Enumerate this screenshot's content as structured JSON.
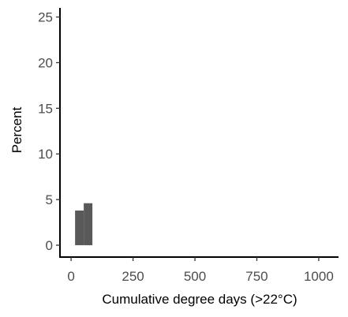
{
  "chart_data": {
    "type": "bar",
    "xlabel": "Cumulative degree days (>22°C)",
    "ylabel": "Percent",
    "xlim": [
      -45,
      1080
    ],
    "ylim": [
      -1.3,
      26
    ],
    "xticks": [
      0,
      250,
      500,
      750,
      1000
    ],
    "yticks": [
      0,
      5,
      10,
      15,
      20,
      25
    ],
    "grid": false,
    "legend": "none",
    "bar_color": "#595959",
    "bars": [
      {
        "x_start": 16,
        "x_end": 51,
        "value": 3.8
      },
      {
        "x_start": 51,
        "x_end": 86,
        "value": 4.6
      }
    ]
  }
}
